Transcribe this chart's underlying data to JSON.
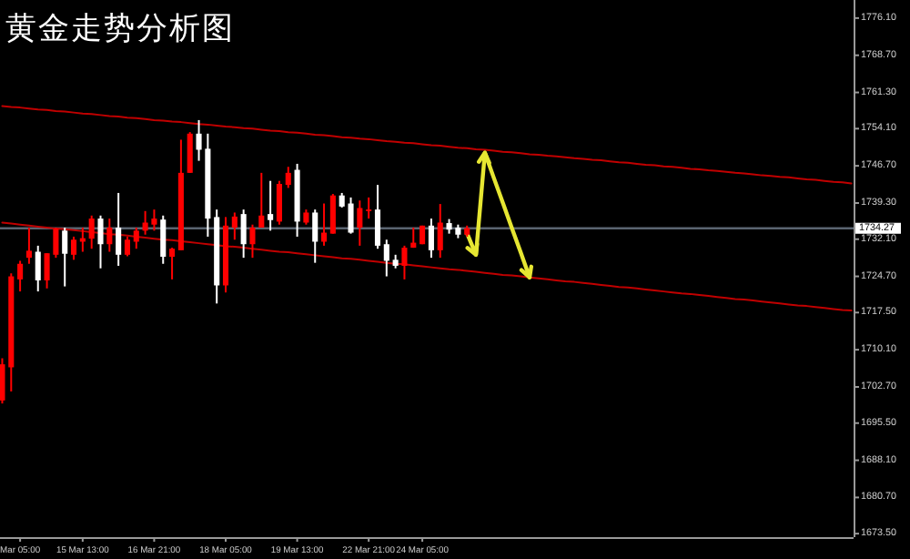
{
  "chart_data": {
    "type": "candlestick",
    "title": "黄金走势分析图",
    "categories": [
      null,
      null,
      "Mar 05:00",
      null,
      null,
      null,
      null,
      null,
      null,
      "15 Mar 13:00",
      null,
      null,
      null,
      null,
      null,
      null,
      null,
      "16 Mar 21:00",
      null,
      null,
      null,
      null,
      null,
      null,
      null,
      "18 Mar 05:00",
      null,
      null,
      null,
      null,
      null,
      null,
      null,
      "19 Mar 13:00",
      null,
      null,
      null,
      null,
      null,
      null,
      null,
      "22 Mar 21:00",
      null,
      null,
      null,
      null,
      null,
      "24 Mar 05:00",
      null,
      null,
      null,
      null,
      null,
      null,
      null,
      null,
      null,
      null,
      null,
      null,
      null,
      null,
      null,
      null,
      null,
      null,
      null,
      null,
      null,
      null,
      null,
      null,
      null,
      null,
      null,
      null,
      null,
      null,
      null,
      null,
      null,
      null,
      null,
      null,
      null,
      null,
      null,
      null,
      null,
      null,
      null,
      null,
      null,
      null,
      null,
      null
    ],
    "ohlc": [
      [
        1700.0,
        1708.4,
        1699.4,
        1707.2
      ],
      [
        1706.6,
        1725.3,
        1701.8,
        1724.7
      ],
      [
        1724.1,
        1727.8,
        1721.7,
        1727.2
      ],
      [
        1728.4,
        1734.4,
        1727.2,
        1729.8
      ],
      [
        1729.6,
        1730.8,
        1721.7,
        1723.9
      ],
      [
        1723.9,
        1729.3,
        1722.3,
        1729.3
      ],
      [
        1729.0,
        1734.4,
        1728.4,
        1734.2
      ],
      [
        1733.8,
        1734.4,
        1722.7,
        1729.2
      ],
      [
        1729.0,
        1732.6,
        1728.0,
        1732.0
      ],
      [
        1731.6,
        1734.4,
        1729.6,
        1732.3
      ],
      [
        1732.2,
        1736.8,
        1730.2,
        1736.2
      ],
      [
        1736.2,
        1736.8,
        1726.3,
        1731.1
      ],
      [
        1731.1,
        1736.2,
        1729.6,
        1734.4
      ],
      [
        1734.4,
        1741.3,
        1726.8,
        1729.0
      ],
      [
        1729.0,
        1732.6,
        1728.7,
        1732.0
      ],
      [
        1731.6,
        1734.4,
        1730.2,
        1733.8
      ],
      [
        1733.8,
        1737.7,
        1733.0,
        1735.4
      ],
      [
        1735.0,
        1738.0,
        1733.8,
        1736.2
      ],
      [
        1736.0,
        1736.8,
        1727.2,
        1728.6
      ],
      [
        1728.6,
        1730.4,
        1724.1,
        1730.2
      ],
      [
        1729.9,
        1751.9,
        1729.9,
        1745.3
      ],
      [
        1745.3,
        1753.4,
        1745.3,
        1753.1
      ],
      [
        1753.1,
        1755.8,
        1747.7,
        1749.9
      ],
      [
        1750.1,
        1753.1,
        1732.6,
        1736.2
      ],
      [
        1736.5,
        1738.0,
        1719.3,
        1722.9
      ],
      [
        1722.9,
        1736.5,
        1721.5,
        1734.8
      ],
      [
        1734.4,
        1737.4,
        1732.0,
        1736.6
      ],
      [
        1737.1,
        1738.0,
        1728.4,
        1731.1
      ],
      [
        1731.1,
        1735.0,
        1728.4,
        1734.4
      ],
      [
        1734.4,
        1745.3,
        1734.4,
        1736.8
      ],
      [
        1737.1,
        1743.7,
        1733.8,
        1735.9
      ],
      [
        1735.6,
        1743.7,
        1735.0,
        1743.1
      ],
      [
        1742.9,
        1746.5,
        1742.3,
        1745.3
      ],
      [
        1745.9,
        1747.1,
        1732.6,
        1735.6
      ],
      [
        1735.4,
        1738.0,
        1735.0,
        1737.4
      ],
      [
        1737.4,
        1738.0,
        1727.4,
        1731.6
      ],
      [
        1731.6,
        1739.2,
        1730.8,
        1733.4
      ],
      [
        1733.2,
        1741.1,
        1733.2,
        1740.8
      ],
      [
        1740.8,
        1741.3,
        1738.4,
        1738.6
      ],
      [
        1739.2,
        1740.4,
        1733.2,
        1733.4
      ],
      [
        1734.4,
        1739.8,
        1730.8,
        1738.3
      ],
      [
        1737.7,
        1740.4,
        1736.2,
        1738.0
      ],
      [
        1738.0,
        1742.9,
        1730.2,
        1730.8
      ],
      [
        1731.1,
        1732.0,
        1724.7,
        1727.8
      ],
      [
        1728.0,
        1729.0,
        1726.3,
        1726.8
      ],
      [
        1726.8,
        1730.8,
        1724.1,
        1730.4
      ],
      [
        1730.4,
        1734.4,
        1730.4,
        1731.4
      ],
      [
        1731.1,
        1734.8,
        1731.1,
        1734.8
      ],
      [
        1734.8,
        1736.2,
        1728.4,
        1729.9
      ],
      [
        1729.9,
        1739.1,
        1728.4,
        1735.4
      ],
      [
        1735.3,
        1736.1,
        1733.2,
        1734.0
      ],
      [
        1734.4,
        1735.0,
        1732.3,
        1733.0
      ],
      [
        1733.0,
        1734.8,
        1732.6,
        1734.3
      ],
      null,
      null,
      null,
      null,
      null,
      null,
      null,
      null,
      null,
      null,
      null,
      null,
      null,
      null,
      null,
      null,
      null,
      null,
      null,
      null,
      null,
      null,
      null,
      null,
      null,
      null,
      null,
      null,
      null,
      null,
      null,
      null,
      null,
      null,
      null,
      null,
      null,
      null,
      null,
      null,
      null,
      null,
      null
    ],
    "colors": [
      "#ff0000",
      "#ff0000",
      "#ff0000",
      "#ff0000",
      "#ffffff",
      "#ff0000",
      "#ff0000",
      "#ffffff",
      "#ff0000",
      "#ff0000",
      "#ff0000",
      "#ffffff",
      "#ff0000",
      "#ffffff",
      "#ff0000",
      "#ff0000",
      "#ff0000",
      "#ff0000",
      "#ffffff",
      "#ff0000",
      "#ff0000",
      "#ff0000",
      "#ffffff",
      "#ffffff",
      "#ffffff",
      "#ff0000",
      "#ff0000",
      "#ffffff",
      "#ff0000",
      "#ff0000",
      "#ffffff",
      "#ff0000",
      "#ff0000",
      "#ffffff",
      "#ff0000",
      "#ffffff",
      "#ff0000",
      "#ff0000",
      "#ffffff",
      "#ffffff",
      "#ff0000",
      "#ff0000",
      "#ffffff",
      "#ffffff",
      "#ffffff",
      "#ff0000",
      "#ff0000",
      "#ff0000",
      "#ffffff",
      "#ff0000",
      "#ffffff",
      "#ffffff",
      "#ff0000",
      null,
      null,
      null,
      null,
      null,
      null,
      null,
      null,
      null,
      null,
      null,
      null,
      null,
      null,
      null,
      null,
      null,
      null,
      null,
      null,
      null,
      null,
      null,
      null,
      null,
      null,
      null,
      null,
      null,
      null,
      null,
      null,
      null,
      null,
      null,
      null,
      null,
      null,
      null,
      null,
      null,
      null,
      null
    ],
    "series": [
      {
        "type": "line",
        "color": "#c00000",
        "values": [
          1758.6,
          1758.4,
          1758.3,
          1758.1,
          1757.9,
          1757.8,
          1757.6,
          1757.5,
          1757.3,
          1757.1,
          1757.0,
          1756.8,
          1756.6,
          1756.5,
          1756.3,
          1756.2,
          1756.0,
          1755.8,
          1755.7,
          1755.5,
          1755.4,
          1755.2,
          1755.0,
          1754.9,
          1754.7,
          1754.5,
          1754.4,
          1754.2,
          1754.1,
          1753.9,
          1753.7,
          1753.6,
          1753.4,
          1753.3,
          1753.1,
          1752.9,
          1752.8,
          1752.6,
          1752.4,
          1752.3,
          1752.1,
          1752.0,
          1751.8,
          1751.6,
          1751.5,
          1751.3,
          1751.2,
          1751.0,
          1750.8,
          1750.7,
          1750.5,
          1750.3,
          1750.2,
          1750.0,
          1749.9,
          1749.7,
          1749.5,
          1749.4,
          1749.2,
          1749.0,
          1748.9,
          1748.7,
          1748.6,
          1748.4,
          1748.2,
          1748.1,
          1747.9,
          1747.8,
          1747.6,
          1747.4,
          1747.3,
          1747.1,
          1746.9,
          1746.8,
          1746.6,
          1746.5,
          1746.3,
          1746.1,
          1746.0,
          1745.8,
          1745.7,
          1745.5,
          1745.3,
          1745.2,
          1745.0,
          1744.8,
          1744.7,
          1744.5,
          1744.4,
          1744.2,
          1744.0,
          1743.9,
          1743.7,
          1743.5,
          1743.4,
          1743.2
        ]
      },
      {
        "type": "line",
        "color": "#c00000",
        "values": [
          1735.4,
          1735.2,
          1735.0,
          1734.8,
          1734.6,
          1734.4,
          1734.2,
          1734.1,
          1733.9,
          1733.7,
          1733.5,
          1733.3,
          1733.1,
          1733.0,
          1732.8,
          1732.6,
          1732.4,
          1732.2,
          1732.0,
          1731.9,
          1731.7,
          1731.5,
          1731.3,
          1731.1,
          1730.9,
          1730.7,
          1730.6,
          1730.4,
          1730.2,
          1730.0,
          1729.8,
          1729.6,
          1729.5,
          1729.3,
          1729.1,
          1728.9,
          1728.7,
          1728.5,
          1728.3,
          1728.2,
          1728.0,
          1727.8,
          1727.6,
          1727.4,
          1727.2,
          1727.1,
          1726.9,
          1726.7,
          1726.5,
          1726.3,
          1726.1,
          1726.0,
          1725.8,
          1725.6,
          1725.4,
          1725.2,
          1725.0,
          1724.9,
          1724.7,
          1724.5,
          1724.3,
          1724.1,
          1723.9,
          1723.7,
          1723.6,
          1723.4,
          1723.2,
          1723.0,
          1722.8,
          1722.6,
          1722.5,
          1722.3,
          1722.1,
          1721.9,
          1721.7,
          1721.5,
          1721.3,
          1721.2,
          1721.0,
          1720.8,
          1720.6,
          1720.4,
          1720.2,
          1720.1,
          1719.9,
          1719.7,
          1719.5,
          1719.3,
          1719.1,
          1718.9,
          1718.8,
          1718.6,
          1718.4,
          1718.2,
          1718.0,
          1717.9
        ]
      },
      {
        "type": "line",
        "color": "#e6e632",
        "values": [
          null,
          null,
          null,
          null,
          null,
          null,
          null,
          null,
          null,
          null,
          null,
          null,
          null,
          null,
          null,
          null,
          null,
          null,
          null,
          null,
          null,
          null,
          null,
          null,
          null,
          null,
          null,
          null,
          null,
          null,
          null,
          null,
          null,
          null,
          null,
          null,
          null,
          null,
          null,
          null,
          null,
          null,
          null,
          null,
          null,
          null,
          null,
          null,
          null,
          null,
          null,
          null,
          1733.3,
          1729.0,
          1749.3,
          1744.3,
          1739.4,
          1734.4,
          1729.5,
          1724.5,
          null,
          null,
          null,
          null,
          null,
          null,
          null,
          null,
          null,
          null,
          null,
          null,
          null,
          null,
          null,
          null,
          null,
          null,
          null,
          null,
          null,
          null,
          null,
          null,
          null,
          null,
          null,
          null,
          null,
          null,
          null,
          null,
          null,
          null,
          null,
          null
        ]
      }
    ],
    "ylim": [
      1672.8,
      1779.7
    ],
    "yticks": [
      {
        "value": 1776.1,
        "label": "1776.10"
      },
      {
        "value": 1768.7,
        "label": "1768.70"
      },
      {
        "value": 1761.3,
        "label": "1761.30"
      },
      {
        "value": 1754.1,
        "label": "1754.10"
      },
      {
        "value": 1746.7,
        "label": "1746.70"
      },
      {
        "value": 1739.3,
        "label": "1739.30"
      },
      {
        "value": 1732.1,
        "label": "1732.10"
      },
      {
        "value": 1724.7,
        "label": "1724.70"
      },
      {
        "value": 1717.5,
        "label": "1717.50"
      },
      {
        "value": 1710.1,
        "label": "1710.10"
      },
      {
        "value": 1702.7,
        "label": "1702.70"
      },
      {
        "value": 1695.5,
        "label": "1695.50"
      },
      {
        "value": 1688.1,
        "label": "1688.10"
      },
      {
        "value": 1680.7,
        "label": "1680.70"
      },
      {
        "value": 1673.5,
        "label": "1673.50"
      }
    ],
    "ref_lines": [
      {
        "axis": "y",
        "value": 1734.27,
        "label": "1734.27",
        "color": "#5a6470"
      }
    ],
    "grid": false
  }
}
